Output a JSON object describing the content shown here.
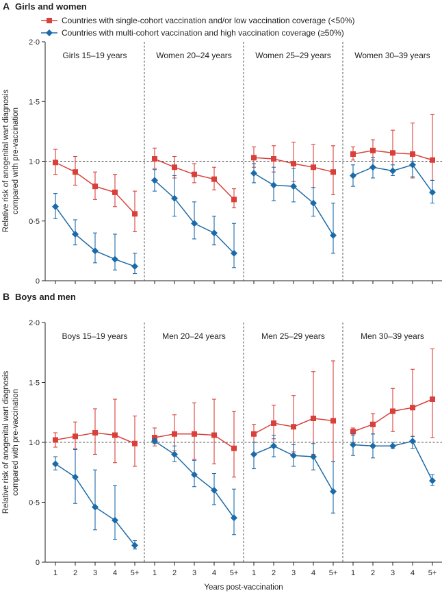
{
  "legend": [
    {
      "label": "Countries with single-cohort vaccination and/or low vaccination coverage (<50%)",
      "color": "#d9403a",
      "marker": "square"
    },
    {
      "label": "Countries with multi-cohort vaccination and high vaccination coverage (≥50%)",
      "color": "#1c6aa8",
      "marker": "diamond"
    }
  ],
  "xlabel": "Years post-vaccination",
  "ylabel_line1": "Relative risk of anogenital wart diagnosis",
  "ylabel_line2": "compared with pre-vaccination",
  "chart_data": [
    {
      "type": "line",
      "letter": "A",
      "title": "Girls and women",
      "ylim": [
        0,
        2
      ],
      "yticks": [
        "0",
        "0·5",
        "1·0",
        "1·5",
        "2·0"
      ],
      "categories": [
        "1",
        "2",
        "3",
        "4",
        "5+"
      ],
      "reference_line": 1.0,
      "subplots": [
        {
          "title": "Girls 15–19 years",
          "series": [
            {
              "name": "single",
              "values": [
                0.99,
                0.91,
                0.79,
                0.74,
                0.56
              ],
              "lower": [
                0.89,
                0.8,
                0.68,
                0.62,
                0.41
              ],
              "upper": [
                1.1,
                1.04,
                0.91,
                0.89,
                0.75
              ]
            },
            {
              "name": "multi",
              "values": [
                0.62,
                0.39,
                0.25,
                0.18,
                0.12
              ],
              "lower": [
                0.52,
                0.3,
                0.15,
                0.09,
                0.06
              ],
              "upper": [
                0.73,
                0.51,
                0.4,
                0.39,
                0.23
              ]
            }
          ]
        },
        {
          "title": "Women 20–24 years",
          "series": [
            {
              "name": "single",
              "values": [
                1.02,
                0.95,
                0.89,
                0.85,
                0.68
              ],
              "lower": [
                0.94,
                0.86,
                0.82,
                0.76,
                0.61
              ],
              "upper": [
                1.11,
                1.04,
                0.98,
                0.95,
                0.77
              ]
            },
            {
              "name": "multi",
              "values": [
                0.84,
                0.69,
                0.48,
                0.4,
                0.23
              ],
              "lower": [
                0.75,
                0.54,
                0.35,
                0.3,
                0.11
              ],
              "upper": [
                0.93,
                0.88,
                0.66,
                0.54,
                0.48
              ]
            }
          ]
        },
        {
          "title": "Women 25–29 years",
          "series": [
            {
              "name": "single",
              "values": [
                1.03,
                1.02,
                0.98,
                0.95,
                0.91
              ],
              "lower": [
                0.95,
                0.91,
                0.83,
                0.78,
                0.72
              ],
              "upper": [
                1.12,
                1.13,
                1.16,
                1.14,
                1.13
              ]
            },
            {
              "name": "multi",
              "values": [
                0.9,
                0.8,
                0.79,
                0.65,
                0.38
              ],
              "lower": [
                0.82,
                0.67,
                0.66,
                0.54,
                0.23
              ],
              "upper": [
                0.98,
                0.95,
                0.94,
                0.78,
                0.65
              ]
            }
          ]
        },
        {
          "title": "Women 30–39 years",
          "series": [
            {
              "name": "single",
              "values": [
                1.06,
                1.09,
                1.07,
                1.06,
                1.01
              ],
              "lower": [
                1.01,
                1.01,
                0.92,
                0.86,
                0.84
              ],
              "upper": [
                1.12,
                1.18,
                1.26,
                1.32,
                1.39
              ]
            },
            {
              "name": "multi",
              "values": [
                0.88,
                0.95,
                0.92,
                0.97,
                0.74
              ],
              "lower": [
                0.79,
                0.86,
                0.88,
                0.87,
                0.65
              ],
              "upper": [
                0.97,
                1.03,
                0.97,
                1.0,
                0.84
              ]
            }
          ]
        }
      ]
    },
    {
      "type": "line",
      "letter": "B",
      "title": "Boys and men",
      "ylim": [
        0,
        2
      ],
      "yticks": [
        "0",
        "0·5",
        "1·0",
        "1·5",
        "2·0"
      ],
      "categories": [
        "1",
        "2",
        "3",
        "4",
        "5+"
      ],
      "reference_line": 1.0,
      "subplots": [
        {
          "title": "Boys 15–19 years",
          "series": [
            {
              "name": "single",
              "values": [
                1.02,
                1.05,
                1.08,
                1.06,
                0.99
              ],
              "lower": [
                0.96,
                0.95,
                0.9,
                0.83,
                0.8
              ],
              "upper": [
                1.08,
                1.17,
                1.28,
                1.36,
                1.22
              ]
            },
            {
              "name": "multi",
              "values": [
                0.82,
                0.71,
                0.46,
                0.35,
                0.14
              ],
              "lower": [
                0.77,
                0.49,
                0.27,
                0.19,
                0.11
              ],
              "upper": [
                0.88,
                0.94,
                0.77,
                0.64,
                0.18
              ]
            }
          ]
        },
        {
          "title": "Men 20–24 years",
          "series": [
            {
              "name": "single",
              "values": [
                1.04,
                1.07,
                1.07,
                1.06,
                0.95
              ],
              "lower": [
                0.97,
                0.93,
                0.86,
                0.82,
                0.71
              ],
              "upper": [
                1.12,
                1.23,
                1.33,
                1.36,
                1.26
              ]
            },
            {
              "name": "multi",
              "values": [
                1.01,
                0.9,
                0.73,
                0.6,
                0.37
              ],
              "lower": [
                0.99,
                0.84,
                0.63,
                0.48,
                0.23
              ],
              "upper": [
                1.03,
                0.97,
                0.85,
                0.74,
                0.61
              ]
            }
          ]
        },
        {
          "title": "Men 25–29 years",
          "series": [
            {
              "name": "single",
              "values": [
                1.07,
                1.16,
                1.13,
                1.2,
                1.18
              ],
              "lower": [
                1.0,
                1.03,
                0.92,
                0.9,
                0.84
              ],
              "upper": [
                1.15,
                1.31,
                1.39,
                1.59,
                1.68
              ]
            },
            {
              "name": "multi",
              "values": [
                0.9,
                0.97,
                0.89,
                0.88,
                0.59
              ],
              "lower": [
                0.78,
                0.88,
                0.8,
                0.77,
                0.41
              ],
              "upper": [
                1.0,
                1.06,
                0.98,
                0.99,
                0.84
              ]
            }
          ]
        },
        {
          "title": "Men 30–39 years",
          "series": [
            {
              "name": "single",
              "values": [
                1.09,
                1.15,
                1.26,
                1.29,
                1.36
              ],
              "lower": [
                1.06,
                1.07,
                1.09,
                1.05,
                1.04
              ],
              "upper": [
                1.12,
                1.24,
                1.45,
                1.61,
                1.78
              ]
            },
            {
              "name": "multi",
              "values": [
                0.98,
                0.97,
                0.97,
                1.01,
                0.68
              ],
              "lower": [
                0.89,
                0.87,
                0.95,
                0.95,
                0.64
              ],
              "upper": [
                1.07,
                1.07,
                1.0,
                1.05,
                0.73
              ]
            }
          ]
        }
      ]
    }
  ]
}
